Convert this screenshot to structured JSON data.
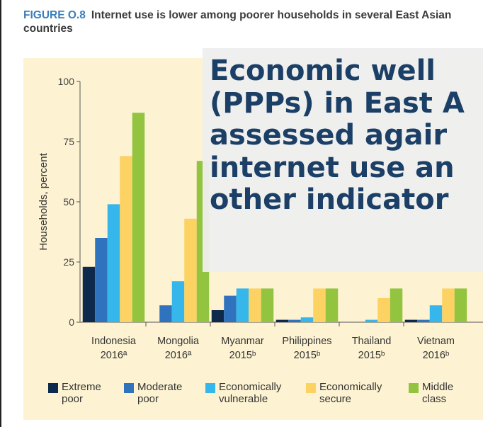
{
  "figure": {
    "label": "FIGURE O.8",
    "title": "Internet use is lower among poorer households in several East Asian countries"
  },
  "overlay": {
    "text": "Economic well\n(PPPs) in East A\nassessed agair\ninternet use an\nother indicator"
  },
  "colors": {
    "panel": "#fdf3d2",
    "extreme_poor": "#0d2a4d",
    "moderate_poor": "#2f73bf",
    "economically_vulnerable": "#35b7ec",
    "economically_secure": "#fcd263",
    "middle_class": "#93c43f"
  },
  "chart_data": {
    "type": "bar",
    "ylabel": "Households, percent",
    "ylim": [
      0,
      100
    ],
    "yticks": [
      "0",
      "25",
      "50",
      "75",
      "100"
    ],
    "categories": [
      {
        "name": "Indonesia",
        "sub": "2016ª"
      },
      {
        "name": "Mongolia",
        "sub": "2016ª"
      },
      {
        "name": "Myanmar",
        "sub": "2015ᵇ"
      },
      {
        "name": "Philippines",
        "sub": "2015ᵇ"
      },
      {
        "name": "Thailand",
        "sub": "2015ᵇ"
      },
      {
        "name": "Vietnam",
        "sub": "2016ᵇ"
      }
    ],
    "series": [
      {
        "name": "Extreme poor",
        "color": "#0d2a4d",
        "values": [
          23,
          0,
          5,
          1,
          0,
          1
        ]
      },
      {
        "name": "Moderate poor",
        "color": "#2f73bf",
        "values": [
          35,
          7,
          11,
          1,
          0,
          1
        ]
      },
      {
        "name": "Economically vulnerable",
        "color": "#35b7ec",
        "values": [
          49,
          17,
          14,
          2,
          1,
          7
        ]
      },
      {
        "name": "Economically secure",
        "color": "#fcd263",
        "values": [
          69,
          43,
          14,
          14,
          10,
          14
        ]
      },
      {
        "name": "Middle class",
        "color": "#93c43f",
        "values": [
          87,
          67,
          14,
          14,
          14,
          14
        ]
      }
    ],
    "legend": {
      "position": "bottom",
      "items": [
        "Extreme\npoor",
        "Moderate\npoor",
        "Economically\nvulnerable",
        "Economically\nsecure",
        "Middle\nclass"
      ]
    }
  }
}
